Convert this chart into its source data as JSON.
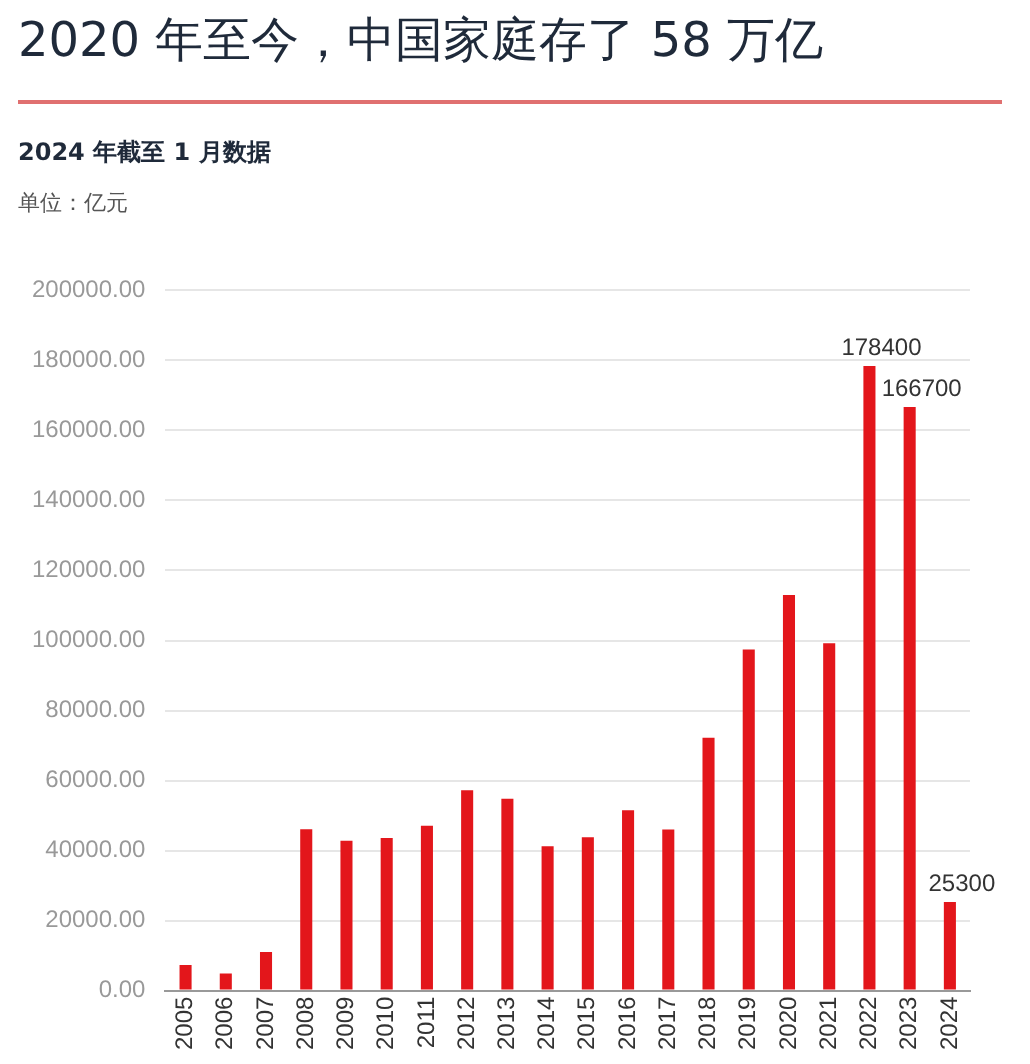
{
  "chart_data": {
    "type": "bar",
    "title": "2020 年至今，中国家庭存了 58 万亿",
    "subtitle": "2024 年截至 1 月数据",
    "ylabel": "单位：亿元",
    "categories": [
      "2005",
      "2006",
      "2007",
      "2008",
      "2009",
      "2010",
      "2011",
      "2012",
      "2013",
      "2014",
      "2015",
      "2016",
      "2017",
      "2018",
      "2019",
      "2020",
      "2021",
      "2022",
      "2023",
      "2024"
    ],
    "values": [
      7300,
      4900,
      11000,
      46100,
      42800,
      43600,
      47100,
      57200,
      54800,
      41200,
      43800,
      51500,
      46000,
      72200,
      97400,
      113000,
      99200,
      178400,
      166700,
      25300
    ],
    "value_labels": [
      null,
      null,
      null,
      null,
      null,
      null,
      null,
      null,
      null,
      null,
      null,
      null,
      null,
      null,
      null,
      null,
      null,
      "178400",
      "166700",
      "25300"
    ],
    "color": "#e3161b",
    "ylim": [
      0,
      200000
    ],
    "yticks": [
      {
        "value": 0,
        "label": "0.00"
      },
      {
        "value": 20000,
        "label": "20000.00"
      },
      {
        "value": 40000,
        "label": "40000.00"
      },
      {
        "value": 60000,
        "label": "60000.00"
      },
      {
        "value": 80000,
        "label": "80000.00"
      },
      {
        "value": 100000,
        "label": "100000.00"
      },
      {
        "value": 120000,
        "label": "120000.00"
      },
      {
        "value": 140000,
        "label": "140000.00"
      },
      {
        "value": 160000,
        "label": "160000.00"
      },
      {
        "value": 180000,
        "label": "180000.00"
      },
      {
        "value": 200000,
        "label": "200000.00"
      }
    ],
    "grid": "y"
  }
}
